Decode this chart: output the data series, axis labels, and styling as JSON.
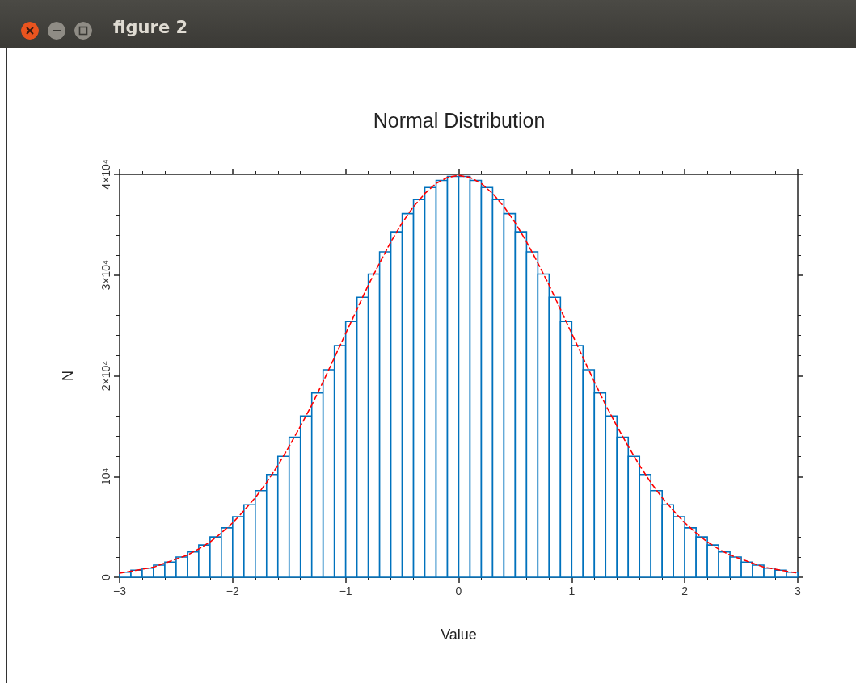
{
  "chart_data": {
    "type": "histogram",
    "title": "Normal Distribution",
    "xlabel": "Value",
    "ylabel": "N",
    "annotations": [
      "figure 2"
    ],
    "bins": [
      -3,
      -2.9,
      -2.8,
      -2.7,
      -2.6,
      -2.5,
      -2.4,
      -2.3,
      -2.2,
      -2.1,
      -2,
      -1.9,
      -1.8,
      -1.7,
      -1.6,
      -1.5,
      -1.4,
      -1.3,
      -1.2,
      -1.1,
      -1,
      -0.9,
      -0.8,
      -0.7,
      -0.6,
      -0.5,
      -0.4,
      -0.3,
      -0.2,
      -0.1,
      0,
      0.1,
      0.2,
      0.3,
      0.4,
      0.5,
      0.6,
      0.7,
      0.8,
      0.9,
      1,
      1.1,
      1.2,
      1.3,
      1.4,
      1.5,
      1.6,
      1.7,
      1.8,
      1.9,
      2,
      2.1,
      2.2,
      2.3,
      2.4,
      2.5,
      2.6,
      2.7,
      2.8,
      2.9,
      3
    ],
    "values": [
      500,
      700,
      900,
      1200,
      1500,
      2000,
      2500,
      3200,
      4000,
      4900,
      6000,
      7200,
      8600,
      10200,
      12000,
      13900,
      16000,
      18300,
      20600,
      23000,
      25400,
      27800,
      30100,
      32300,
      34300,
      36100,
      37500,
      38700,
      39400,
      39800,
      39800,
      39400,
      38700,
      37500,
      36100,
      34300,
      32300,
      30100,
      27800,
      25400,
      23000,
      20600,
      18300,
      16000,
      13900,
      12000,
      10200,
      8600,
      7200,
      6000,
      4900,
      4000,
      3200,
      2500,
      2000,
      1500,
      1200,
      900,
      700,
      500
    ],
    "color": "#0072bd",
    "series": [
      {
        "type": "line",
        "color": "#ff0000",
        "line_style": "dashed",
        "x": [
          -3,
          -2.9,
          -2.8,
          -2.7,
          -2.6,
          -2.5,
          -2.4,
          -2.3,
          -2.2,
          -2.1,
          -2,
          -1.9,
          -1.8,
          -1.7,
          -1.6,
          -1.5,
          -1.4,
          -1.3,
          -1.2,
          -1.1,
          -1,
          -0.9,
          -0.8,
          -0.7,
          -0.6,
          -0.5,
          -0.4,
          -0.3,
          -0.2,
          -0.1,
          0,
          0.1,
          0.2,
          0.3,
          0.4,
          0.5,
          0.6,
          0.7,
          0.8,
          0.9,
          1,
          1.1,
          1.2,
          1.3,
          1.4,
          1.5,
          1.6,
          1.7,
          1.8,
          1.9,
          2,
          2.1,
          2.2,
          2.3,
          2.4,
          2.5,
          2.6,
          2.7,
          2.8,
          2.9,
          3
        ],
        "values": [
          400,
          600,
          800,
          1000,
          1400,
          1800,
          2200,
          2800,
          3500,
          4400,
          5400,
          6600,
          7900,
          9400,
          11100,
          13000,
          15000,
          17100,
          19400,
          21800,
          24200,
          26600,
          29000,
          31200,
          33300,
          35200,
          36800,
          38100,
          39100,
          39700,
          39900,
          39700,
          39100,
          38100,
          36800,
          35200,
          33300,
          31200,
          29000,
          26600,
          24200,
          21800,
          19400,
          17100,
          15000,
          13000,
          11100,
          9400,
          7900,
          6600,
          5400,
          4400,
          3500,
          2800,
          2200,
          1800,
          1400,
          1000,
          800,
          600,
          400
        ]
      }
    ],
    "xlim": [
      -3,
      3
    ],
    "xticks": [
      -3,
      -2,
      -1,
      0,
      1,
      2,
      3
    ],
    "ylim": [
      0,
      40000
    ],
    "yticks": [
      0,
      {
        "value": 10000,
        "label": "10⁴"
      },
      {
        "value": 20000,
        "label": "2×10⁴"
      },
      {
        "value": 30000,
        "label": "3×10⁴"
      },
      {
        "value": 40000,
        "label": "4×10⁴"
      }
    ],
    "grid": false,
    "marker": "none"
  }
}
